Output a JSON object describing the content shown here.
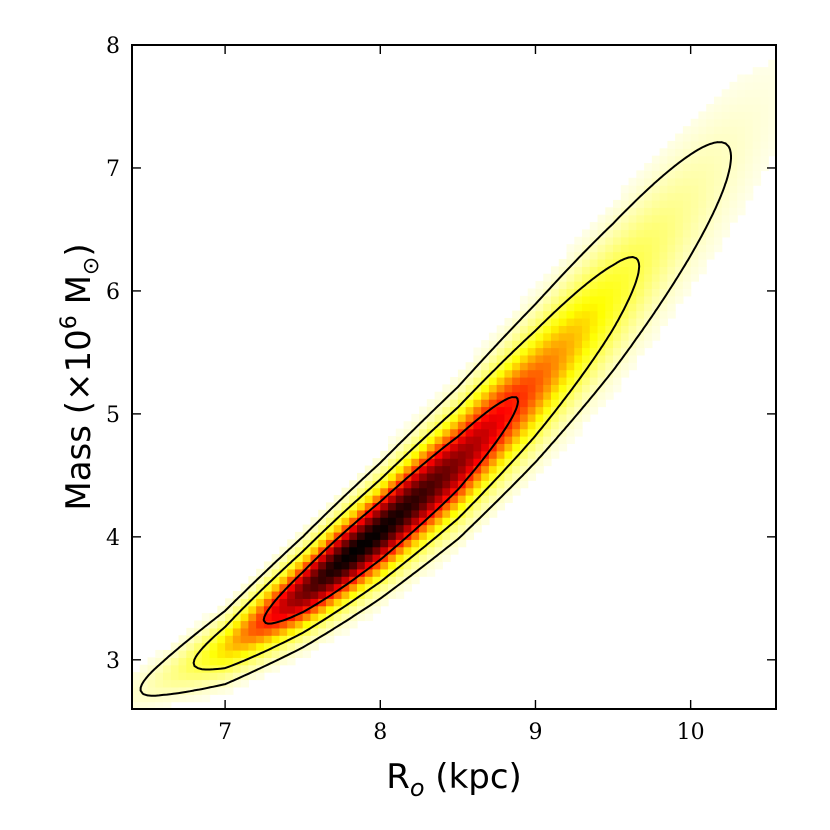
{
  "chart_data": {
    "type": "heatmap",
    "xlabel": {
      "main": "R",
      "sub": "o",
      "rest": " (kpc)"
    },
    "ylabel": {
      "main": "Mass (×10",
      "sup": "6",
      "rest": " M",
      "sub": "⊙",
      "close": ")"
    },
    "xlim": [
      6.4,
      10.55
    ],
    "ylim": [
      2.6,
      8.0
    ],
    "xticks": [
      "7",
      "8",
      "9",
      "10"
    ],
    "xtick_values": [
      7,
      8,
      9,
      10
    ],
    "yticks": [
      "3",
      "4",
      "5",
      "6",
      "7",
      "8"
    ],
    "ytick_values": [
      3,
      4,
      5,
      6,
      7,
      8
    ],
    "colormap": [
      "#ffffff",
      "#ffff00",
      "#ff0000",
      "#000000"
    ],
    "density": {
      "ridge": [
        [
          6.6,
          2.85
        ],
        [
          7.0,
          3.1
        ],
        [
          7.5,
          3.55
        ],
        [
          8.0,
          4.05
        ],
        [
          8.5,
          4.6
        ],
        [
          9.0,
          5.25
        ],
        [
          9.5,
          5.95
        ],
        [
          10.0,
          6.7
        ]
      ],
      "peak": [
        7.85,
        3.95
      ],
      "contour_levels": [
        "68%",
        "95%",
        "99%"
      ]
    },
    "grid": false,
    "legend": "none"
  }
}
